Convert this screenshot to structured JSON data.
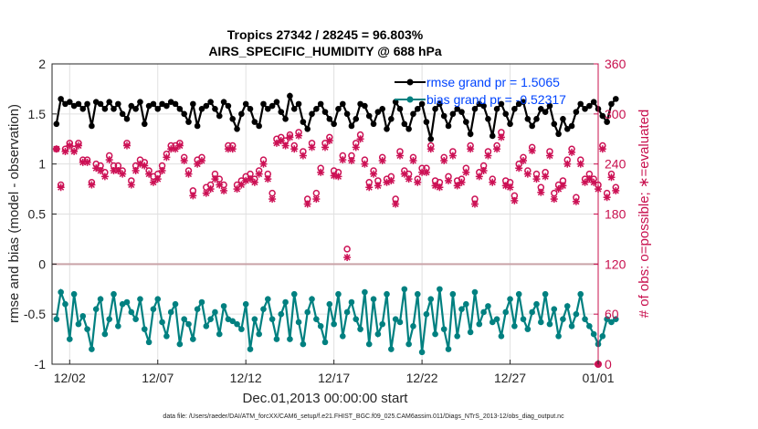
{
  "chart_data": {
    "type": "line",
    "title_line1": "Tropics 27342 / 28245 = 96.803%",
    "title_line2": "AIRS_SPECIFIC_HUMIDITY @ 688 hPa",
    "xlabel": "Dec.01,2013 00:00:00 start",
    "ylabel_left": "rmse and bias (model - observation)",
    "ylabel_right": "# of obs: o=possible; ∗=evaluated",
    "footnote": "data file: /Users/raeder/DAI/ATM_forcXX/CAM6_setup/f.e21.FHIST_BGC.f09_025.CAM6assim.011/Diags_NTrS_2013-12/obs_diag_output.nc",
    "xlim": [
      1,
      32
    ],
    "ylim_left": [
      -1,
      2
    ],
    "ylim_right": [
      0,
      360
    ],
    "x_ticks": [
      2,
      7,
      12,
      17,
      22,
      27,
      32
    ],
    "x_tick_labels": [
      "12/02",
      "12/07",
      "12/12",
      "12/17",
      "12/22",
      "12/27",
      "01/01"
    ],
    "y_ticks_left": [
      -1,
      -0.5,
      0,
      0.5,
      1,
      1.5,
      2
    ],
    "y_tick_labels_left": [
      "-1",
      "-0.5",
      "0",
      "0.5",
      "1",
      "1.5",
      "2"
    ],
    "y_ticks_right": [
      0,
      60,
      120,
      180,
      240,
      300,
      360
    ],
    "y_tick_labels_right": [
      "0",
      "60",
      "120",
      "180",
      "240",
      "300",
      "360"
    ],
    "legend": {
      "rmse_label": "rmse grand pr = 1.5065",
      "bias_label": "bias grand pr = -0.52317",
      "location": "top-right"
    },
    "colors": {
      "rmse": "#000000",
      "bias": "#008080",
      "obs": "#cc1155",
      "zero_line": "#c9a3a8",
      "grid": "#e0e0e0"
    },
    "series": {
      "rmse": [
        1.4,
        1.65,
        1.6,
        1.62,
        1.58,
        1.6,
        1.55,
        1.6,
        1.38,
        1.62,
        1.6,
        1.55,
        1.62,
        1.55,
        1.6,
        1.5,
        1.45,
        1.58,
        1.55,
        1.62,
        1.4,
        1.58,
        1.6,
        1.55,
        1.6,
        1.58,
        1.62,
        1.6,
        1.55,
        1.5,
        1.42,
        1.6,
        1.38,
        1.55,
        1.58,
        1.62,
        1.55,
        1.48,
        1.62,
        1.58,
        1.45,
        1.35,
        1.5,
        1.6,
        1.55,
        1.42,
        1.38,
        1.6,
        1.55,
        1.58,
        1.62,
        1.52,
        1.45,
        1.68,
        1.55,
        1.6,
        1.42,
        1.35,
        1.5,
        1.55,
        1.6,
        1.52,
        1.45,
        1.4,
        1.55,
        1.6,
        1.5,
        1.38,
        1.45,
        1.6,
        1.58,
        1.48,
        1.4,
        1.52,
        1.55,
        1.35,
        1.45,
        1.62,
        1.55,
        1.4,
        1.35,
        1.5,
        1.55,
        1.6,
        1.42,
        1.25,
        1.55,
        1.6,
        1.48,
        1.38,
        1.5,
        1.55,
        1.52,
        1.42,
        1.3,
        1.55,
        1.6,
        1.58,
        1.45,
        1.28,
        1.55,
        1.6,
        1.5,
        1.4,
        1.55,
        1.6,
        1.62,
        1.45,
        1.38,
        1.45,
        1.55,
        1.52,
        1.58,
        1.4,
        1.3,
        1.45,
        1.35,
        1.38,
        1.52,
        1.6,
        1.55,
        1.58,
        1.62,
        1.55,
        1.48,
        1.42,
        1.6,
        1.65
      ],
      "bias": [
        -0.55,
        -0.28,
        -0.4,
        -0.75,
        -0.3,
        -0.6,
        -0.52,
        -0.65,
        -0.85,
        -0.45,
        -0.35,
        -0.7,
        -0.55,
        -0.3,
        -0.62,
        -0.4,
        -0.38,
        -0.48,
        -0.55,
        -0.35,
        -0.65,
        -0.78,
        -0.45,
        -0.35,
        -0.58,
        -0.72,
        -0.48,
        -0.4,
        -0.8,
        -0.55,
        -0.6,
        -0.75,
        -0.45,
        -0.38,
        -0.62,
        -0.55,
        -0.48,
        -0.7,
        -0.42,
        -0.55,
        -0.57,
        -0.6,
        -0.65,
        -0.4,
        -0.85,
        -0.55,
        -0.7,
        -0.45,
        -0.35,
        -0.55,
        -0.75,
        -0.5,
        -0.38,
        -0.75,
        -0.3,
        -0.58,
        -0.8,
        -0.48,
        -0.35,
        -0.55,
        -0.62,
        -0.78,
        -0.4,
        -0.6,
        -0.3,
        -0.72,
        -0.48,
        -0.38,
        -0.55,
        -0.65,
        -0.28,
        -0.8,
        -0.35,
        -0.7,
        -0.6,
        -0.3,
        -0.85,
        -0.55,
        -0.58,
        -0.25,
        -0.8,
        -0.62,
        -0.3,
        -0.88,
        -0.5,
        -0.35,
        -0.7,
        -0.25,
        -0.65,
        -0.85,
        -0.3,
        -0.72,
        -0.45,
        -0.4,
        -0.68,
        -0.28,
        -0.6,
        -0.48,
        -0.42,
        -0.58,
        -0.55,
        -0.72,
        -0.48,
        -0.35,
        -0.62,
        -0.3,
        -0.55,
        -0.65,
        -0.48,
        -0.4,
        -0.58,
        -0.3,
        -0.6,
        -0.45,
        -0.72,
        -0.55,
        -0.42,
        -0.62,
        -0.5,
        -0.3,
        -0.55,
        -0.62,
        -0.7,
        -0.8,
        -0.72,
        -0.55,
        -0.58,
        -0.55
      ],
      "obs_possible": [
        258,
        215,
        258,
        265,
        258,
        265,
        245,
        245,
        218,
        240,
        238,
        230,
        250,
        238,
        238,
        232,
        265,
        220,
        238,
        245,
        242,
        232,
        225,
        228,
        238,
        252,
        262,
        262,
        265,
        248,
        232,
        208,
        245,
        248,
        212,
        215,
        228,
        222,
        215,
        262,
        262,
        215,
        220,
        225,
        228,
        222,
        232,
        245,
        228,
        205,
        270,
        272,
        268,
        275,
        262,
        278,
        255,
        198,
        265,
        205,
        235,
        265,
        272,
        232,
        230,
        250,
        138,
        250,
        265,
        275,
        245,
        218,
        232,
        220,
        248,
        222,
        225,
        198,
        255,
        232,
        228,
        248,
        222,
        235,
        235,
        262,
        220,
        218,
        248,
        225,
        255,
        220,
        222,
        235,
        262,
        198,
        230,
        238,
        255,
        222,
        262,
        278,
        220,
        218,
        202,
        240,
        248,
        232,
        260,
        228,
        212,
        230,
        255,
        205,
        215,
        220,
        245,
        258,
        200,
        245,
        222,
        228,
        222,
        215,
        262,
        205,
        228,
        212
      ],
      "obs_evaluated": [
        258,
        212,
        255,
        262,
        255,
        262,
        242,
        242,
        215,
        235,
        232,
        225,
        245,
        232,
        232,
        228,
        262,
        215,
        232,
        240,
        238,
        228,
        218,
        222,
        232,
        248,
        258,
        258,
        262,
        244,
        228,
        202,
        240,
        244,
        205,
        210,
        222,
        215,
        208,
        258,
        258,
        210,
        215,
        220,
        222,
        218,
        228,
        240,
        222,
        198,
        265,
        268,
        262,
        272,
        258,
        274,
        250,
        192,
        260,
        198,
        230,
        260,
        268,
        226,
        225,
        245,
        128,
        244,
        260,
        270,
        240,
        212,
        228,
        214,
        244,
        218,
        220,
        192,
        250,
        228,
        222,
        244,
        218,
        230,
        230,
        258,
        214,
        212,
        244,
        220,
        250,
        214,
        218,
        230,
        258,
        192,
        225,
        232,
        250,
        218,
        258,
        272,
        214,
        212,
        196,
        235,
        244,
        228,
        256,
        222,
        206,
        225,
        250,
        198,
        210,
        214,
        240,
        254,
        195,
        240,
        218,
        222,
        218,
        210,
        258,
        200,
        224,
        208
      ]
    }
  }
}
